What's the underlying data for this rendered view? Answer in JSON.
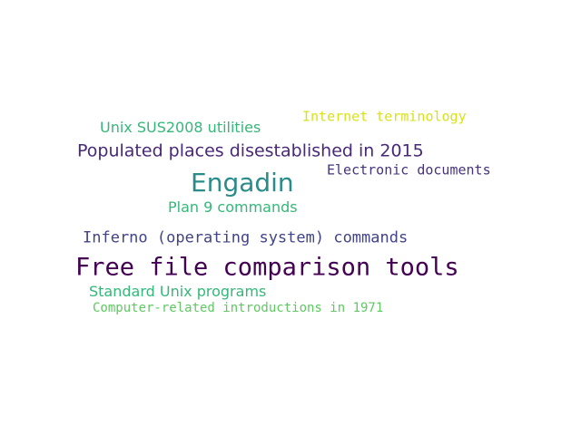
{
  "words": [
    {
      "text": "Unix SUS2008 utilities",
      "color": "#35b779"
    },
    {
      "text": "Internet terminology",
      "color": "#d8e219"
    },
    {
      "text": "Populated places disestablished in 2015",
      "color": "#482878"
    },
    {
      "text": "Electronic documents",
      "color": "#46337e"
    },
    {
      "text": "Engadin",
      "color": "#2a8c8a"
    },
    {
      "text": "Plan 9 commands",
      "color": "#35b779"
    },
    {
      "text": "Inferno (operating system) commands",
      "color": "#414487"
    },
    {
      "text": "Free file comparison tools",
      "color": "#440154"
    },
    {
      "text": "Standard Unix programs",
      "color": "#35b779"
    },
    {
      "text": "Computer-related introductions in 1971",
      "color": "#5ec962"
    }
  ]
}
